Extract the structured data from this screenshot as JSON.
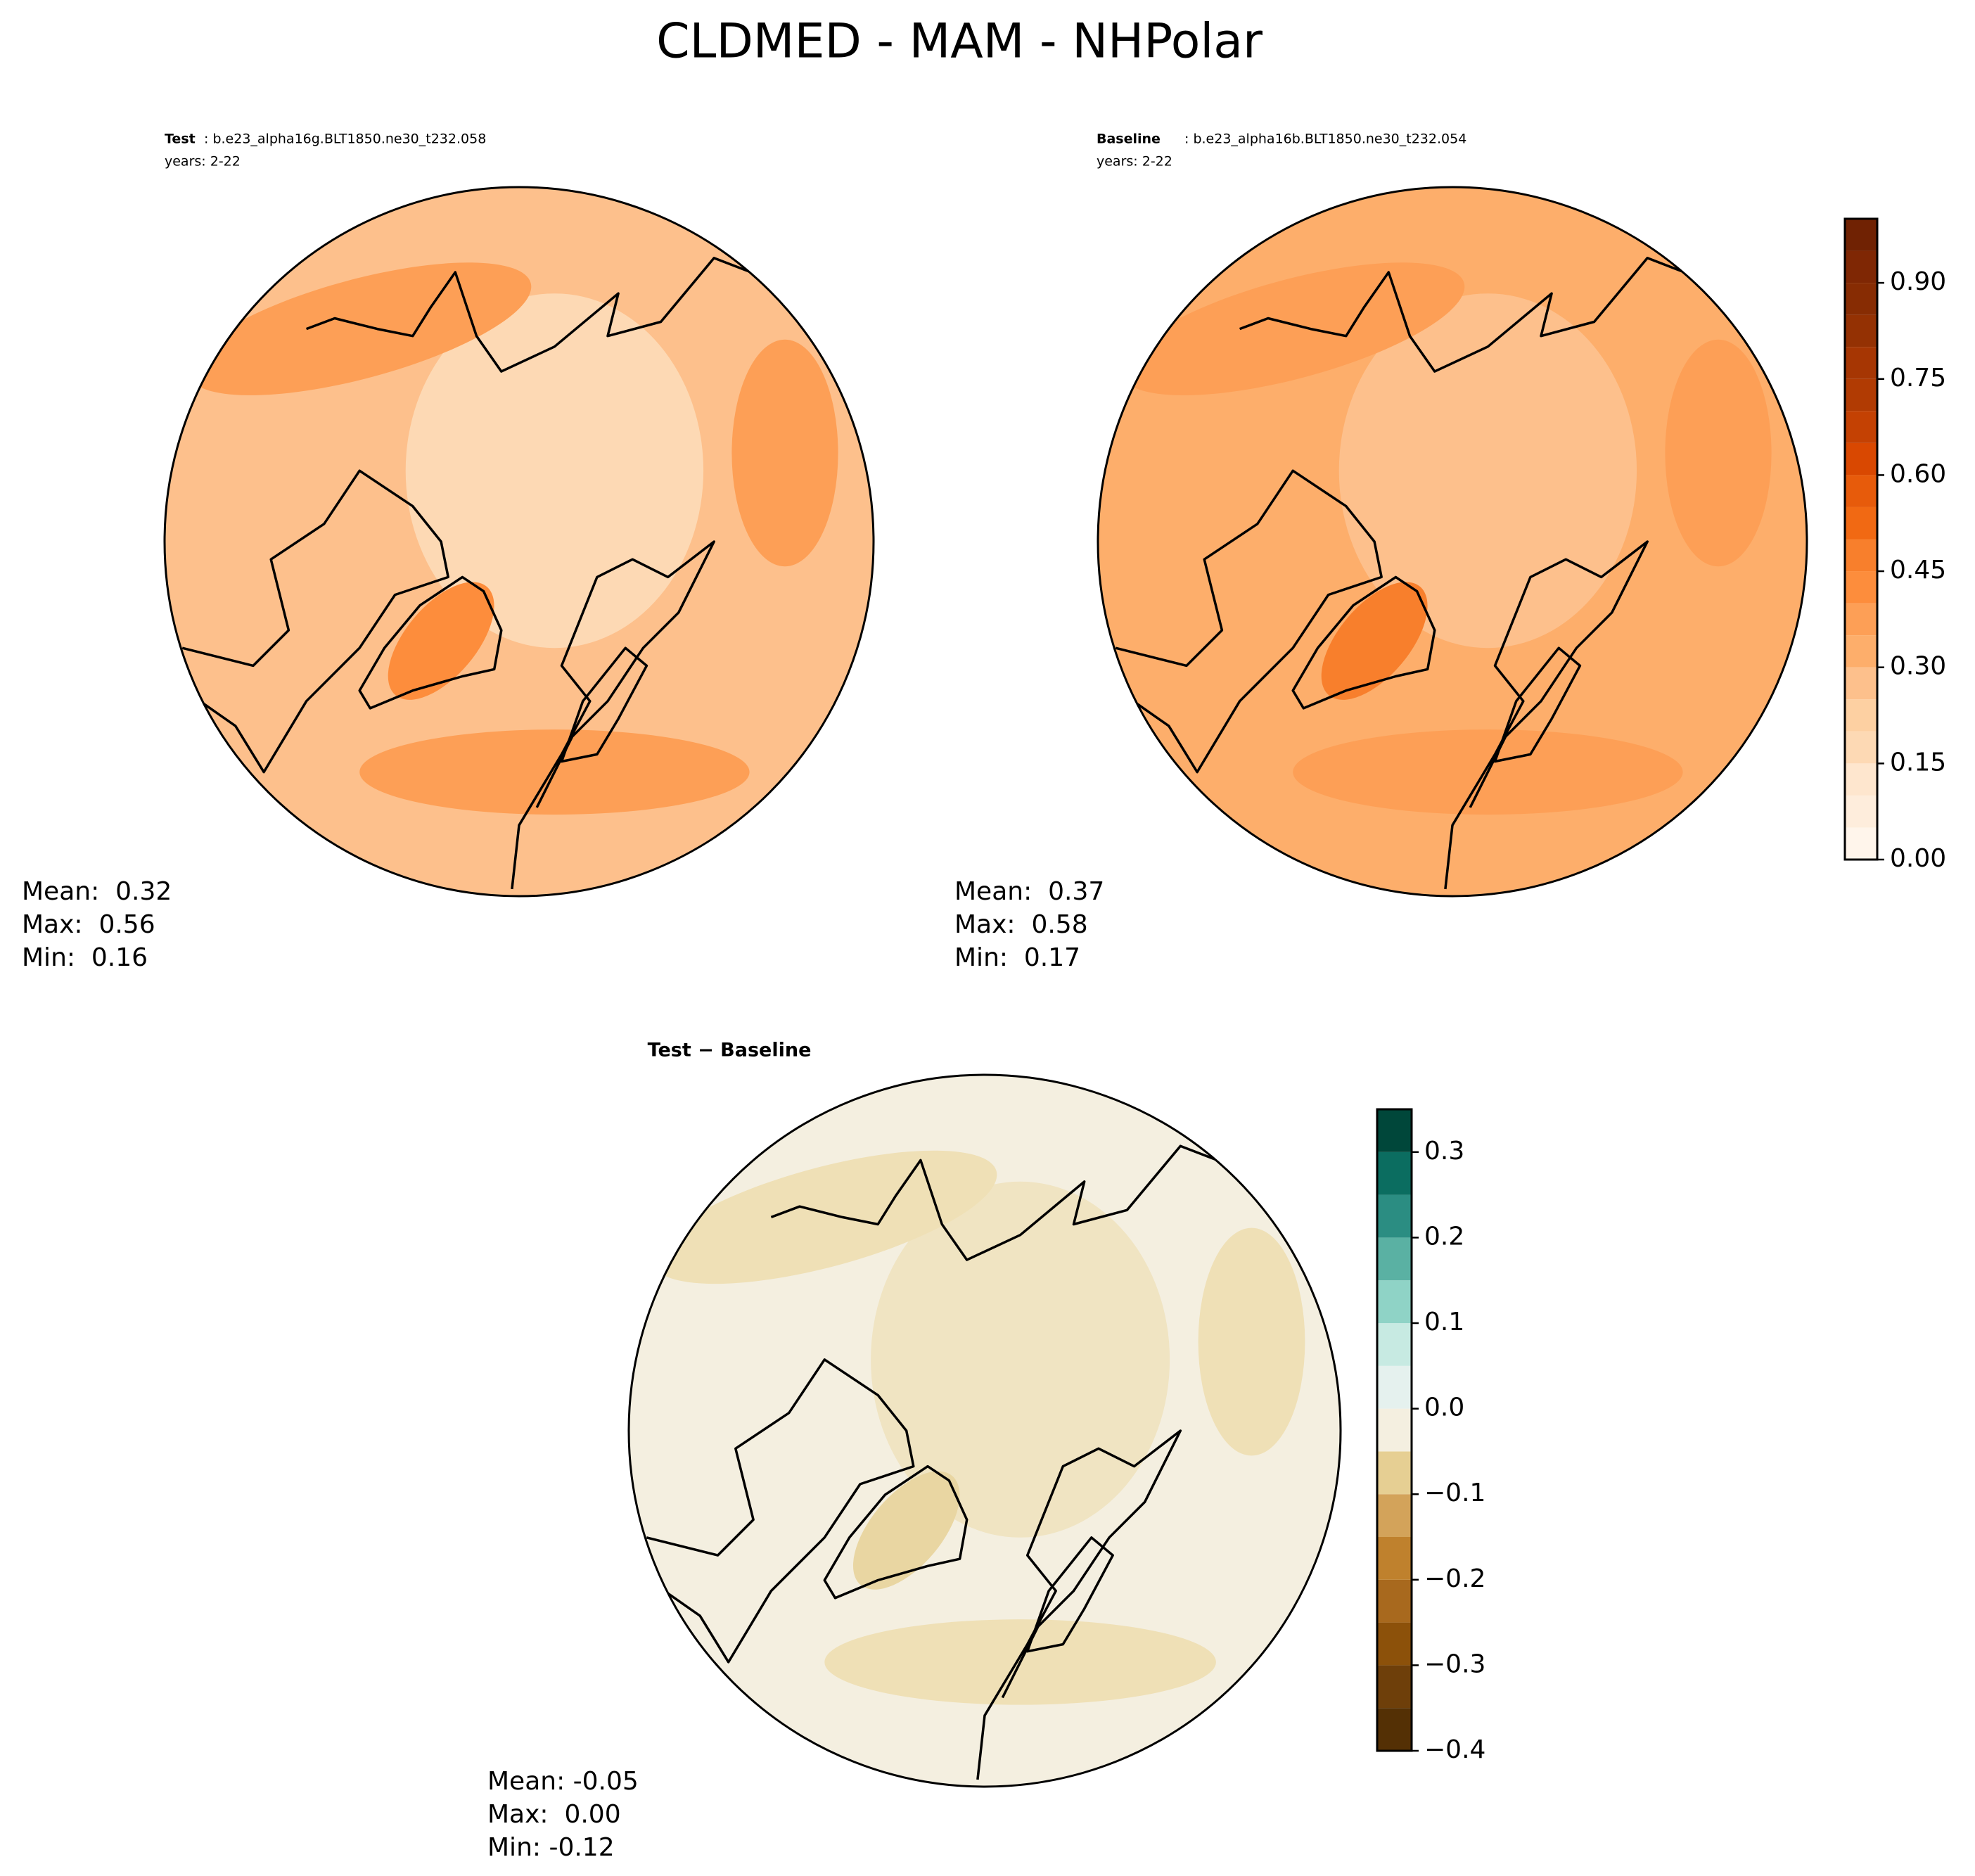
{
  "title": "CLDMED - MAM - NHPolar",
  "panels": [
    {
      "label": "Test",
      "case": ": b.e23_alpha16g.BLT1850.ne30_t232.058",
      "years": "years: 2-22",
      "stats": [
        "Mean:  0.32",
        "Max:  0.56",
        "Min:  0.16"
      ]
    },
    {
      "label": "Baseline",
      "case": ": b.e23_alpha16b.BLT1850.ne30_t232.054",
      "years": "years: 2-22",
      "stats": [
        "Mean:  0.37",
        "Max:  0.58",
        "Min:  0.17"
      ]
    },
    {
      "label": "Test − Baseline",
      "stats": [
        "Mean: -0.05",
        "Max:  0.00",
        "Min: -0.12"
      ]
    }
  ],
  "colorbars": [
    {
      "levels": [
        0,
        0.05,
        0.1,
        0.15,
        0.2,
        0.25,
        0.3,
        0.35,
        0.4,
        0.45,
        0.5,
        0.55,
        0.6,
        0.65,
        0.7,
        0.75,
        0.8,
        0.85,
        0.9,
        0.95,
        1
      ],
      "colors": [
        "#fff5eb",
        "#feeddc",
        "#fee6ce",
        "#fdd9b4",
        "#fdd0a2",
        "#fdc08c",
        "#fdae6b",
        "#fd9f56",
        "#fd8d3c",
        "#f87f2c",
        "#f16913",
        "#e75b0b",
        "#d94801",
        "#c44103",
        "#b13b03",
        "#a63603",
        "#943103",
        "#872c03",
        "#7f2704",
        "#702203"
      ],
      "ticks": [
        {
          "value": 0,
          "label": "0.00"
        },
        {
          "value": 0.15,
          "label": "0.15"
        },
        {
          "value": 0.3,
          "label": "0.30"
        },
        {
          "value": 0.45,
          "label": "0.45"
        },
        {
          "value": 0.6,
          "label": "0.60"
        },
        {
          "value": 0.75,
          "label": "0.75"
        },
        {
          "value": 0.9,
          "label": "0.90"
        }
      ]
    },
    {
      "levels": [
        -0.4,
        -0.35,
        -0.3,
        -0.25,
        -0.2,
        -0.15,
        -0.1,
        -0.05,
        0,
        0.05,
        0.1,
        0.15,
        0.2,
        0.25,
        0.3,
        0.35
      ],
      "colors": [
        "#543005",
        "#6e3f0a",
        "#8c510a",
        "#a8691e",
        "#bf812d",
        "#d3a35a",
        "#e6cf93",
        "#f4efe0",
        "#e5f1ee",
        "#c7eae2",
        "#8fd3c6",
        "#5ab1a3",
        "#2b8d82",
        "#0b6d60",
        "#00473a"
      ],
      "ticks": [
        {
          "value": -0.4,
          "label": "−0.4"
        },
        {
          "value": -0.3,
          "label": "−0.3"
        },
        {
          "value": -0.2,
          "label": "−0.2"
        },
        {
          "value": -0.1,
          "label": "−0.1"
        },
        {
          "value": 0,
          "label": "0.0"
        },
        {
          "value": 0.1,
          "label": "0.1"
        },
        {
          "value": 0.2,
          "label": "0.2"
        },
        {
          "value": 0.3,
          "label": "0.3"
        }
      ]
    }
  ]
}
